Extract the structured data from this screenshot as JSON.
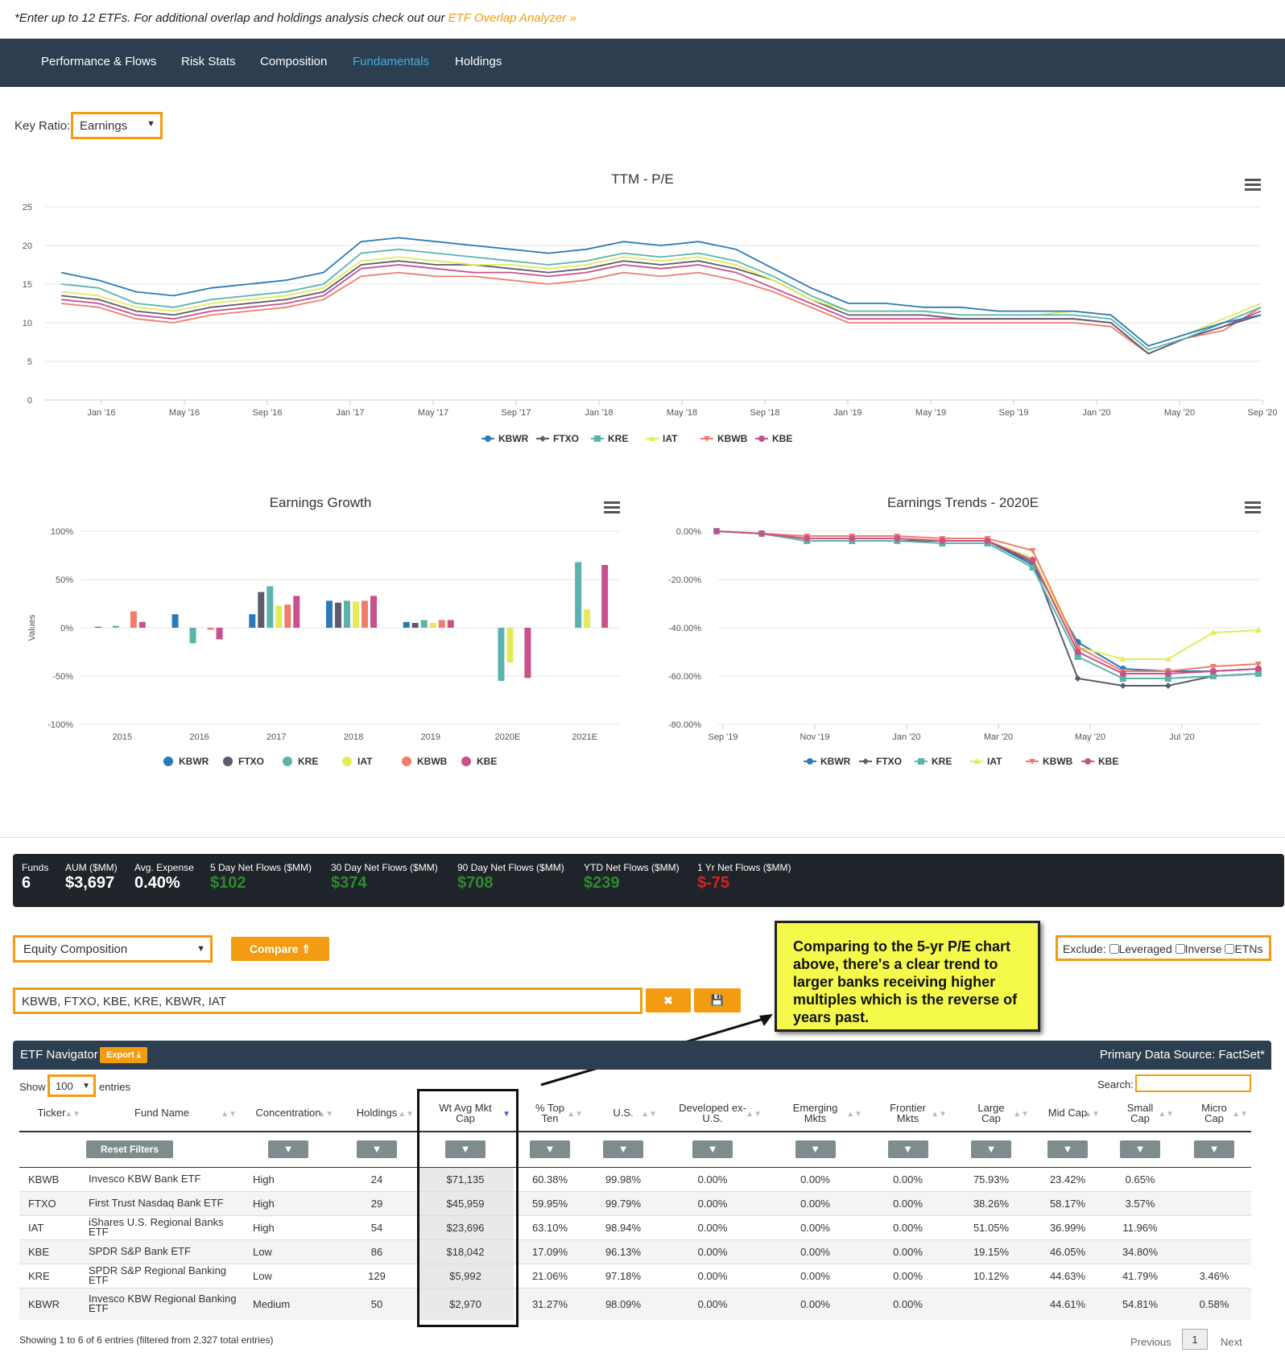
{
  "top_note": {
    "text": "*Enter up to 12 ETFs. For additional overlap and holdings analysis check out our ",
    "link": "ETF Overlap Analyzer »"
  },
  "nav": {
    "tabs": [
      "Performance & Flows",
      "Risk Stats",
      "Composition",
      "Fundamentals",
      "Holdings"
    ],
    "active": "Fundamentals"
  },
  "key_ratio": {
    "label": "Key Ratio:",
    "value": "Earnings"
  },
  "colors": {
    "KBWR": "#2a7ab9",
    "FTXO": "#5c5c6e",
    "KRE": "#5ab4ac",
    "IAT": "#e3eb5a",
    "KBWB": "#f07c6c",
    "KBE": "#c8508c",
    "accent": "#f39c12",
    "nav_bg": "#2c3e50"
  },
  "legend": [
    "KBWR",
    "FTXO",
    "KRE",
    "IAT",
    "KBWB",
    "KBE"
  ],
  "chart_data": [
    {
      "type": "line",
      "title": "TTM - P/E",
      "ylim": [
        0,
        25
      ],
      "yticks": [
        "25",
        "20",
        "15",
        "10",
        "5",
        "0"
      ],
      "xticks": [
        "Jan '16",
        "May '16",
        "Sep '16",
        "Jan '17",
        "May '17",
        "Sep '17",
        "Jan '18",
        "May '18",
        "Sep '18",
        "Jan '19",
        "May '19",
        "Sep '19",
        "Jan '20",
        "May '20",
        "Sep '20"
      ],
      "x": [
        "Sep '15",
        "Nov '15",
        "Jan '16",
        "Mar '16",
        "May '16",
        "Jul '16",
        "Sep '16",
        "Nov '16",
        "Dec '16",
        "Jan '17",
        "Mar '17",
        "May '17",
        "Jul '17",
        "Sep '17",
        "Nov '17",
        "Jan '18",
        "Mar '18",
        "May '18",
        "Jul '18",
        "Sep '18",
        "Nov '18",
        "Jan '19",
        "Mar '19",
        "May '19",
        "Jul '19",
        "Sep '19",
        "Nov '19",
        "Jan '20",
        "Mar '20",
        "Apr '20",
        "May '20",
        "Jul '20",
        "Sep '20"
      ],
      "series": [
        {
          "name": "KBWR",
          "values": [
            16.5,
            15.5,
            14.0,
            13.5,
            14.5,
            15.0,
            15.5,
            16.5,
            20.5,
            21.0,
            20.5,
            20.0,
            19.5,
            19.0,
            19.5,
            20.5,
            20.0,
            20.5,
            19.5,
            17.0,
            14.5,
            12.5,
            12.5,
            12.0,
            12.0,
            11.5,
            11.5,
            11.5,
            11.0,
            7.0,
            8.5,
            10.0,
            11.0
          ]
        },
        {
          "name": "FTXO",
          "values": [
            13.5,
            13.0,
            11.5,
            11.0,
            12.0,
            12.5,
            13.0,
            14.0,
            17.5,
            18.0,
            17.5,
            17.5,
            17.0,
            16.5,
            17.0,
            18.0,
            17.5,
            18.0,
            17.0,
            15.5,
            13.0,
            11.0,
            11.0,
            11.0,
            10.5,
            10.5,
            10.5,
            10.5,
            10.0,
            6.0,
            8.0,
            9.5,
            11.0
          ]
        },
        {
          "name": "KRE",
          "values": [
            15.0,
            14.5,
            12.5,
            12.0,
            13.0,
            13.5,
            14.0,
            15.0,
            19.0,
            19.5,
            19.0,
            18.5,
            18.0,
            17.5,
            18.0,
            19.0,
            18.5,
            19.0,
            18.0,
            16.0,
            13.5,
            11.5,
            11.5,
            11.5,
            11.0,
            11.0,
            11.0,
            11.0,
            10.5,
            6.5,
            8.0,
            10.0,
            12.0
          ]
        },
        {
          "name": "IAT",
          "values": [
            14.0,
            13.5,
            12.0,
            11.5,
            12.5,
            13.0,
            13.5,
            14.5,
            18.0,
            18.5,
            18.0,
            17.5,
            17.5,
            17.0,
            17.5,
            18.5,
            18.0,
            18.5,
            17.5,
            15.5,
            13.0,
            11.5,
            11.5,
            11.5,
            11.0,
            11.0,
            11.0,
            11.5,
            11.0,
            7.0,
            8.5,
            10.5,
            12.5
          ]
        },
        {
          "name": "KBWB",
          "values": [
            12.5,
            12.0,
            10.5,
            10.0,
            11.0,
            11.5,
            12.0,
            13.0,
            16.0,
            16.5,
            16.0,
            16.0,
            15.5,
            15.0,
            15.5,
            16.5,
            16.0,
            16.5,
            15.5,
            14.0,
            12.0,
            10.0,
            10.0,
            10.0,
            10.0,
            10.0,
            10.0,
            10.0,
            9.5,
            6.0,
            8.0,
            9.0,
            12.0
          ]
        },
        {
          "name": "KBE",
          "values": [
            13.0,
            12.5,
            11.0,
            10.5,
            11.5,
            12.0,
            12.5,
            13.5,
            17.0,
            17.5,
            17.0,
            16.5,
            16.5,
            16.0,
            16.5,
            17.5,
            17.0,
            17.5,
            16.5,
            14.5,
            12.5,
            10.5,
            10.5,
            10.5,
            10.5,
            10.5,
            10.5,
            10.5,
            10.0,
            6.0,
            8.0,
            9.5,
            11.5
          ]
        }
      ]
    },
    {
      "type": "bar",
      "title": "Earnings Growth",
      "ylabel": "Values",
      "ylim": [
        -100,
        100
      ],
      "yticks": [
        "100%",
        "50%",
        "0%",
        "-50%",
        "-100%"
      ],
      "categories": [
        "2015",
        "2016",
        "2017",
        "2018",
        "2019",
        "2020E",
        "2021E"
      ],
      "series": [
        {
          "name": "KBWR",
          "values": [
            1,
            14,
            14,
            28,
            6,
            0,
            0
          ]
        },
        {
          "name": "FTXO",
          "values": [
            0,
            0,
            37,
            26,
            5,
            0,
            0
          ]
        },
        {
          "name": "KRE",
          "values": [
            2,
            -16,
            43,
            28,
            8,
            -55,
            68
          ]
        },
        {
          "name": "IAT",
          "values": [
            0,
            0,
            23,
            27,
            5,
            -36,
            19
          ]
        },
        {
          "name": "KBWB",
          "values": [
            17,
            -2,
            24,
            28,
            8,
            0,
            0
          ]
        },
        {
          "name": "KBE",
          "values": [
            6,
            -12,
            33,
            33,
            8,
            -52,
            65
          ]
        }
      ]
    },
    {
      "type": "line",
      "title": "Earnings Trends - 2020E",
      "ylim": [
        -80,
        0
      ],
      "yticks": [
        "0.00%",
        "-20.00%",
        "-40.00%",
        "-60.00%",
        "-80.00%"
      ],
      "xticks": [
        "Sep '19",
        "Nov '19",
        "Jan '20",
        "Mar '20",
        "May '20",
        "Jul '20"
      ],
      "x": [
        "Sep '19",
        "Oct '19",
        "Nov '19",
        "Dec '19",
        "Jan '20",
        "Feb '20",
        "Mar '20",
        "Apr '20",
        "May '20",
        "Jun '20",
        "Jul '20",
        "Aug '20",
        "Sep '20"
      ],
      "series": [
        {
          "name": "KBWR",
          "values": [
            0,
            -1,
            -4,
            -4,
            -4,
            -4,
            -4,
            -14,
            -46,
            -57,
            -58,
            -58,
            -57
          ]
        },
        {
          "name": "FTXO",
          "values": [
            0,
            -1,
            -4,
            -4,
            -4,
            -4,
            -4,
            -13,
            -61,
            -64,
            -64,
            -60,
            -59
          ]
        },
        {
          "name": "KRE",
          "values": [
            0,
            -1,
            -4,
            -4,
            -4,
            -5,
            -5,
            -15,
            -52,
            -61,
            -61,
            -60,
            -59
          ]
        },
        {
          "name": "IAT",
          "values": [
            0,
            -1,
            -3,
            -3,
            -3,
            -4,
            -4,
            -11,
            -48,
            -53,
            -53,
            -42,
            -41
          ]
        },
        {
          "name": "KBWB",
          "values": [
            0,
            -1,
            -2,
            -2,
            -2,
            -3,
            -3,
            -8,
            -48,
            -58,
            -58,
            -56,
            -55
          ]
        },
        {
          "name": "KBE",
          "values": [
            0,
            -1,
            -3,
            -3,
            -3,
            -4,
            -4,
            -12,
            -50,
            -59,
            -59,
            -58,
            -57
          ]
        }
      ]
    }
  ],
  "stats": [
    {
      "label": "Funds",
      "value": "6",
      "tone": "normal"
    },
    {
      "label": "AUM ($MM)",
      "value": "$3,697",
      "tone": "normal"
    },
    {
      "label": "Avg. Expense",
      "value": "0.40%",
      "tone": "normal"
    },
    {
      "label": "5 Day Net Flows ($MM)",
      "value": "$102",
      "tone": "pos"
    },
    {
      "label": "30 Day Net Flows ($MM)",
      "value": "$374",
      "tone": "pos"
    },
    {
      "label": "90 Day Net Flows ($MM)",
      "value": "$708",
      "tone": "pos"
    },
    {
      "label": "YTD Net Flows ($MM)",
      "value": "$239",
      "tone": "pos"
    },
    {
      "label": "1 Yr Net Flows ($MM)",
      "value": "$-75",
      "tone": "neg"
    }
  ],
  "controls": {
    "view_select": "Equity Composition",
    "compare_label": "Compare ⇑",
    "exclude_label": "Exclude:",
    "exclude_options": [
      "Leveraged",
      "Inverse",
      "ETNs"
    ],
    "tickers_input": "KBWB, FTXO, KBE, KRE, KBWR, IAT",
    "clear_icon": "✖",
    "save_icon": "💾"
  },
  "callout": "Comparing to the 5-yr P/E chart above, there's a clear trend to larger banks receiving higher multiples which is the reverse of years past.",
  "navigator": {
    "title": "ETF Navigator",
    "export_label": "Export ⤓",
    "source": "Primary Data Source: FactSet*",
    "show_label": "Show",
    "show_value": "100",
    "entries_label": "entries",
    "search_label": "Search:",
    "reset_label": "Reset Filters",
    "columns": [
      "Ticker",
      "Fund Name",
      "Concentration",
      "Holdings",
      "Wt Avg Mkt Cap",
      "% Top Ten",
      "U.S.",
      "Developed ex-U.S.",
      "Emerging Mkts",
      "Frontier Mkts",
      "Large Cap",
      "Mid Cap",
      "Small Cap",
      "Micro Cap"
    ],
    "rows": [
      [
        "KBWB",
        "Invesco KBW Bank ETF",
        "High",
        "24",
        "$71,135",
        "60.38%",
        "99.98%",
        "0.00%",
        "0.00%",
        "0.00%",
        "75.93%",
        "23.42%",
        "0.65%",
        ""
      ],
      [
        "FTXO",
        "First Trust Nasdaq Bank ETF",
        "High",
        "29",
        "$45,959",
        "59.95%",
        "99.79%",
        "0.00%",
        "0.00%",
        "0.00%",
        "38.26%",
        "58.17%",
        "3.57%",
        ""
      ],
      [
        "IAT",
        "iShares U.S. Regional Banks ETF",
        "High",
        "54",
        "$23,696",
        "63.10%",
        "98.94%",
        "0.00%",
        "0.00%",
        "0.00%",
        "51.05%",
        "36.99%",
        "11.96%",
        ""
      ],
      [
        "KBE",
        "SPDR S&P Bank ETF",
        "Low",
        "86",
        "$18,042",
        "17.09%",
        "96.13%",
        "0.00%",
        "0.00%",
        "0.00%",
        "19.15%",
        "46.05%",
        "34.80%",
        ""
      ],
      [
        "KRE",
        "SPDR S&P Regional Banking ETF",
        "Low",
        "129",
        "$5,992",
        "21.06%",
        "97.18%",
        "0.00%",
        "0.00%",
        "0.00%",
        "10.12%",
        "44.63%",
        "41.79%",
        "3.46%"
      ],
      [
        "KBWR",
        "Invesco KBW Regional Banking ETF",
        "Medium",
        "50",
        "$2,970",
        "31.27%",
        "98.09%",
        "0.00%",
        "0.00%",
        "0.00%",
        "",
        "44.61%",
        "54.81%",
        "0.58%"
      ]
    ],
    "footer": "Showing 1 to 6 of 6 entries (filtered from 2,327 total entries)",
    "prev_label": "Previous",
    "page": "1",
    "next_label": "Next"
  }
}
